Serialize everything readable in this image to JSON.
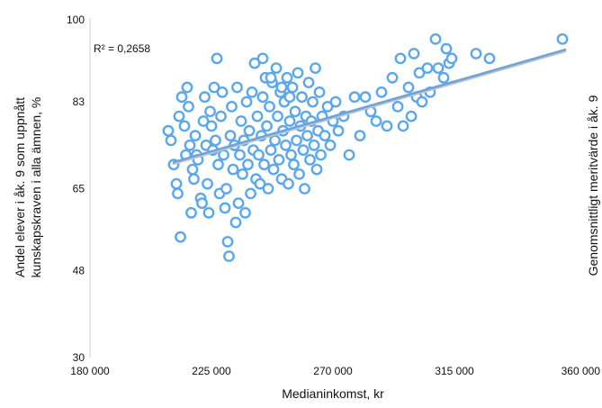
{
  "chart_data": {
    "type": "scatter",
    "xlabel": "Medianinkomst, kr",
    "ylabel_line1": "Andel elever i åk. 9 som uppnått",
    "ylabel_line2": "kunskapskraven i alla ämnen, %",
    "y2label": "Genomsnittligt meritvärde i åk. 9",
    "annotation": "R² = 0,2658",
    "xlim": [
      180000,
      360000
    ],
    "ylim": [
      30,
      100
    ],
    "x_ticks": [
      180000,
      225000,
      270000,
      315000,
      360000
    ],
    "x_tick_labels": [
      "180 000",
      "225 000",
      "270 000",
      "315 000",
      "360 000"
    ],
    "y_ticks": [
      30,
      48,
      65,
      83,
      100
    ],
    "y_tick_labels": [
      "30",
      "48",
      "65",
      "83",
      "100"
    ],
    "grid": false,
    "trendline": {
      "x": [
        211000,
        356000
      ],
      "y": [
        70.5,
        93.8
      ]
    },
    "colors": {
      "marker": "#5aa7ee",
      "trend": "#6fa3d6"
    },
    "points": [
      [
        211000,
        70
      ],
      [
        212000,
        66
      ],
      [
        213000,
        80
      ],
      [
        214000,
        84
      ],
      [
        215000,
        78
      ],
      [
        215500,
        72
      ],
      [
        216000,
        86
      ],
      [
        217000,
        74
      ],
      [
        218000,
        69
      ],
      [
        219000,
        76
      ],
      [
        209000,
        77
      ],
      [
        210000,
        75
      ],
      [
        212500,
        64
      ],
      [
        213500,
        55
      ],
      [
        216500,
        82
      ],
      [
        217500,
        60
      ],
      [
        218500,
        67
      ],
      [
        219500,
        72
      ],
      [
        220000,
        71
      ],
      [
        221000,
        63
      ],
      [
        221500,
        62
      ],
      [
        222000,
        79
      ],
      [
        222500,
        84
      ],
      [
        223000,
        74
      ],
      [
        223500,
        66
      ],
      [
        224000,
        60
      ],
      [
        224500,
        81
      ],
      [
        225000,
        78
      ],
      [
        225500,
        73
      ],
      [
        226000,
        86
      ],
      [
        226500,
        75
      ],
      [
        227000,
        92
      ],
      [
        227500,
        70
      ],
      [
        228000,
        64
      ],
      [
        228500,
        80
      ],
      [
        229000,
        85
      ],
      [
        229500,
        72
      ],
      [
        230000,
        61
      ],
      [
        230500,
        65
      ],
      [
        231000,
        54
      ],
      [
        231500,
        51
      ],
      [
        232000,
        76
      ],
      [
        232500,
        82
      ],
      [
        233000,
        69
      ],
      [
        233500,
        74
      ],
      [
        234000,
        58
      ],
      [
        234500,
        86
      ],
      [
        235000,
        62
      ],
      [
        235500,
        72
      ],
      [
        236000,
        79
      ],
      [
        236500,
        68
      ],
      [
        237000,
        75
      ],
      [
        237500,
        60
      ],
      [
        238000,
        83
      ],
      [
        238500,
        70
      ],
      [
        239000,
        77
      ],
      [
        239500,
        64
      ],
      [
        240000,
        85
      ],
      [
        240500,
        73
      ],
      [
        241000,
        91
      ],
      [
        241500,
        67
      ],
      [
        242000,
        80
      ],
      [
        242500,
        72
      ],
      [
        243000,
        66
      ],
      [
        243500,
        76
      ],
      [
        244000,
        84
      ],
      [
        244500,
        70
      ],
      [
        245000,
        88
      ],
      [
        245500,
        78
      ],
      [
        246000,
        65
      ],
      [
        246500,
        82
      ],
      [
        247000,
        73
      ],
      [
        247500,
        87
      ],
      [
        248000,
        69
      ],
      [
        248500,
        75
      ],
      [
        249000,
        90
      ],
      [
        249500,
        80
      ],
      [
        250000,
        71
      ],
      [
        250500,
        85
      ],
      [
        251000,
        67
      ],
      [
        251500,
        77
      ],
      [
        252000,
        83
      ],
      [
        252500,
        74
      ],
      [
        253000,
        88
      ],
      [
        253500,
        66
      ],
      [
        254000,
        79
      ],
      [
        254500,
        72
      ],
      [
        255000,
        86
      ],
      [
        255500,
        70
      ],
      [
        256000,
        81
      ],
      [
        256500,
        75
      ],
      [
        257000,
        89
      ],
      [
        257500,
        68
      ],
      [
        258000,
        78
      ],
      [
        258500,
        84
      ],
      [
        259000,
        73
      ],
      [
        259500,
        65
      ],
      [
        260000,
        80
      ],
      [
        260500,
        76
      ],
      [
        261000,
        87
      ],
      [
        261500,
        71
      ],
      [
        262000,
        79
      ],
      [
        262500,
        83
      ],
      [
        263000,
        74
      ],
      [
        263500,
        90
      ],
      [
        264000,
        69
      ],
      [
        264500,
        77
      ],
      [
        265000,
        85
      ],
      [
        265500,
        72
      ],
      [
        266000,
        80
      ],
      [
        267000,
        76
      ],
      [
        268000,
        82
      ],
      [
        269000,
        74
      ],
      [
        270000,
        79
      ],
      [
        271000,
        83
      ],
      [
        272000,
        77
      ],
      [
        274000,
        80
      ],
      [
        276000,
        72
      ],
      [
        278000,
        84
      ],
      [
        280000,
        76
      ],
      [
        282000,
        84
      ],
      [
        284000,
        81
      ],
      [
        286000,
        79
      ],
      [
        288000,
        85
      ],
      [
        290000,
        78
      ],
      [
        292000,
        88
      ],
      [
        294000,
        82
      ],
      [
        295000,
        92
      ],
      [
        296000,
        78
      ],
      [
        298000,
        86
      ],
      [
        299000,
        80
      ],
      [
        300000,
        93
      ],
      [
        301000,
        84
      ],
      [
        302000,
        89
      ],
      [
        303000,
        83
      ],
      [
        305000,
        90
      ],
      [
        306000,
        85
      ],
      [
        308000,
        96
      ],
      [
        309000,
        90
      ],
      [
        311000,
        88
      ],
      [
        312000,
        94
      ],
      [
        313000,
        91
      ],
      [
        314000,
        92
      ],
      [
        323000,
        93
      ],
      [
        328000,
        92
      ],
      [
        355000,
        96
      ],
      [
        244000,
        92
      ],
      [
        247000,
        88
      ],
      [
        251000,
        86
      ],
      [
        254000,
        84
      ]
    ]
  }
}
